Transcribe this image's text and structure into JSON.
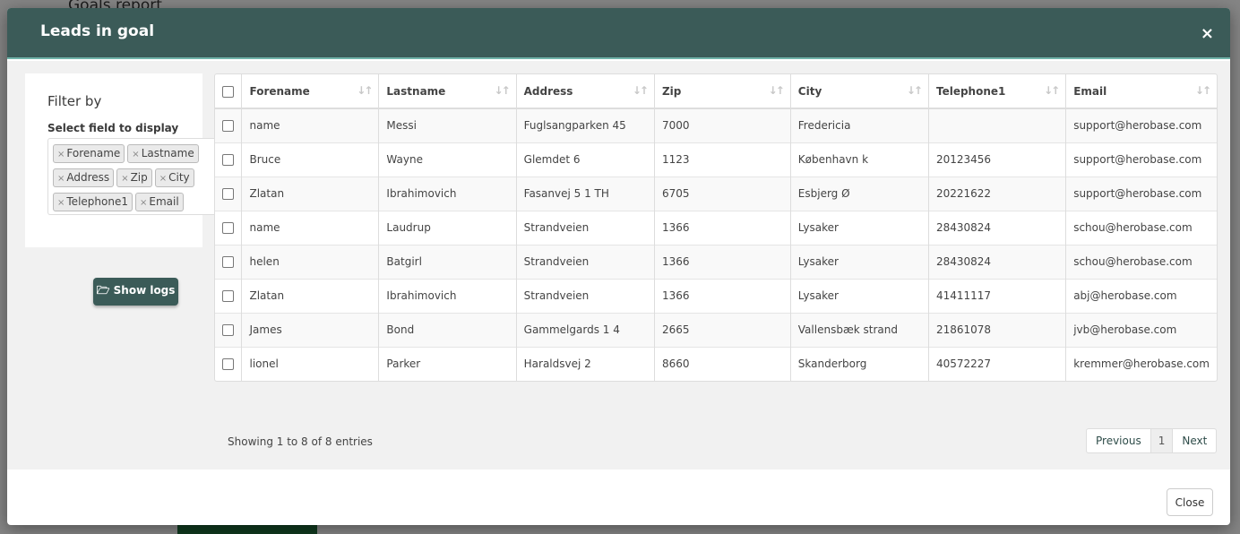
{
  "background": {
    "title": "Goals report"
  },
  "modal": {
    "title": "Leads in goal",
    "close_x": "×",
    "close_label": "Close"
  },
  "filter": {
    "heading": "Filter by",
    "subheading": "Select field to display",
    "tags": [
      "Forename",
      "Lastname",
      "Address",
      "Zip",
      "City",
      "Telephone1",
      "Email"
    ],
    "show_logs_label": "🗁 Show logs"
  },
  "table": {
    "columns": [
      "Forename",
      "Lastname",
      "Address",
      "Zip",
      "City",
      "Telephone1",
      "Email"
    ],
    "rows": [
      [
        "name",
        "Messi",
        "Fuglsangparken 45",
        "7000",
        "Fredericia",
        "",
        "support@herobase.com"
      ],
      [
        "Bruce",
        "Wayne",
        "Glemdet 6",
        "1123",
        "København k",
        "20123456",
        "support@herobase.com"
      ],
      [
        "Zlatan",
        "Ibrahimovich",
        "Fasanvej 5 1 TH",
        "6705",
        "Esbjerg Ø",
        "20221622",
        "support@herobase.com"
      ],
      [
        "name",
        "Laudrup",
        "Strandveien",
        "1366",
        "Lysaker",
        "28430824",
        "schou@herobase.com"
      ],
      [
        "helen",
        "Batgirl",
        "Strandveien",
        "1366",
        "Lysaker",
        "28430824",
        "schou@herobase.com"
      ],
      [
        "Zlatan",
        "Ibrahimovich",
        "Strandveien",
        "1366",
        "Lysaker",
        "41411117",
        "abj@herobase.com"
      ],
      [
        "James",
        "Bond",
        "Gammelgards 1 4",
        "2665",
        "Vallensbæk strand",
        "21861078",
        "jvb@herobase.com"
      ],
      [
        "lionel",
        "Parker",
        "Haraldsvej 2",
        "8660",
        "Skanderborg",
        "40572227",
        "kremmer@herobase.com"
      ]
    ]
  },
  "pagination": {
    "info": "Showing 1 to 8 of 8 entries",
    "previous": "Previous",
    "current": "1",
    "next": "Next"
  }
}
